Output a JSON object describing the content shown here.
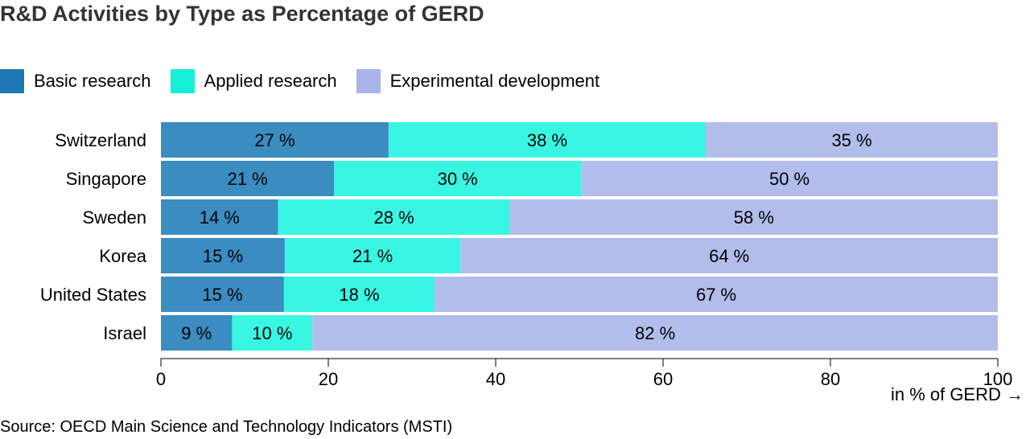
{
  "title": "R&D Activities by Type as Percentage of GERD",
  "legend": [
    {
      "label": "Basic research",
      "color": "#1f77b4"
    },
    {
      "label": "Applied research",
      "color": "#17f0d9"
    },
    {
      "label": "Experimental development",
      "color": "#aab4ea"
    }
  ],
  "source": "Source: OECD Main Science and Technology Indicators (MSTI)",
  "chart_data": {
    "type": "bar",
    "orientation": "horizontal",
    "stacked": true,
    "categories": [
      "Switzerland",
      "Singapore",
      "Sweden",
      "Korea",
      "United States",
      "Israel"
    ],
    "series": [
      {
        "name": "Basic research",
        "values": [
          27.2,
          20.7,
          14.0,
          14.8,
          14.7,
          8.5
        ],
        "labels": [
          "27 %",
          "21 %",
          "14 %",
          "15 %",
          "15 %",
          "9 %"
        ],
        "color": "#3a8cc1"
      },
      {
        "name": "Applied research",
        "values": [
          37.9,
          29.5,
          27.7,
          21.0,
          18.0,
          9.6
        ],
        "labels": [
          "38 %",
          "30 %",
          "28 %",
          "21 %",
          "18 %",
          "10 %"
        ],
        "color": "#39f6e2"
      },
      {
        "name": "Experimental development",
        "values": [
          34.9,
          49.8,
          58.3,
          64.2,
          67.3,
          81.9
        ],
        "labels": [
          "35 %",
          "50 %",
          "58 %",
          "64 %",
          "67 %",
          "82 %"
        ],
        "color": "#b3bdec"
      }
    ],
    "xlim": [
      0,
      100
    ],
    "xticks": [
      0,
      20,
      40,
      60,
      80,
      100
    ],
    "xlabel": "in % of GERD →",
    "grid": false,
    "legend_position": "top-left"
  }
}
